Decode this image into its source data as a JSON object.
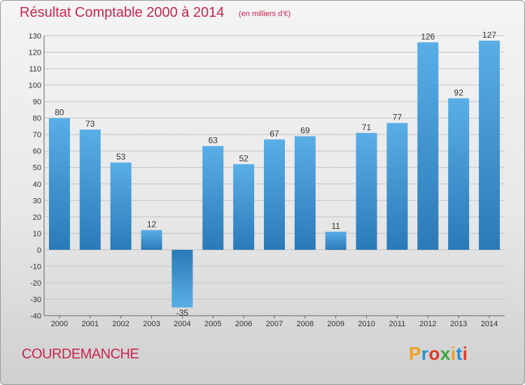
{
  "header": {
    "title": "Résultat Comptable 2000 à 2014",
    "subtitle": "(en milliers d'€)"
  },
  "footer": {
    "commune": "COURDEMANCHE",
    "logo": "Proxiti"
  },
  "colors": {
    "title": "#c8264f",
    "bar_top": "#5aaee6",
    "bar_bottom": "#2a7ab8",
    "logo_letters": [
      "#f0a020",
      "#2a8fd8",
      "#e23a2a",
      "#3aa640",
      "#f0a020",
      "#2a8fd8",
      "#e23a2a"
    ]
  },
  "chart_data": {
    "type": "bar",
    "categories": [
      "2000",
      "2001",
      "2002",
      "2003",
      "2004",
      "2005",
      "2006",
      "2007",
      "2008",
      "2009",
      "2010",
      "2011",
      "2012",
      "2013",
      "2014"
    ],
    "values": [
      80,
      73,
      53,
      12,
      -35,
      63,
      52,
      67,
      69,
      11,
      71,
      77,
      126,
      92,
      127
    ],
    "title": "Résultat Comptable 2000 à 2014",
    "ylim": [
      -40,
      130
    ],
    "yticks": [
      -40,
      -30,
      -20,
      -10,
      0,
      10,
      20,
      30,
      40,
      50,
      60,
      70,
      80,
      90,
      100,
      110,
      120,
      130
    ],
    "grid": true
  }
}
